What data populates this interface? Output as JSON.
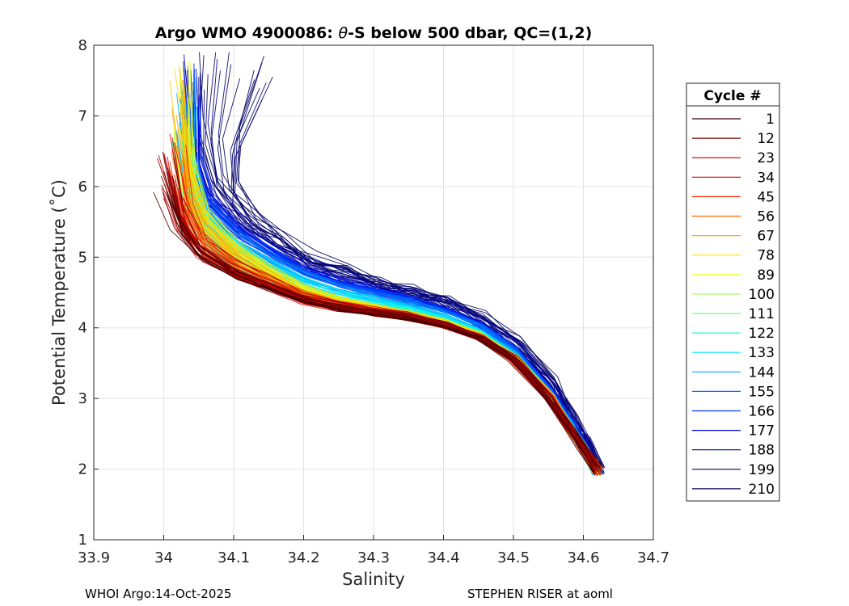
{
  "chart_data": {
    "type": "line",
    "title_prefix": "Argo WMO 4900086: ",
    "title_theta": "θ",
    "title_suffix": "-S below 500 dbar,  QC=(1,2)",
    "xlabel": "Salinity",
    "ylabel": "Potential Temperature (˚C)",
    "xlim": [
      33.9,
      34.7
    ],
    "ylim": [
      1,
      8
    ],
    "xticks": [
      33.9,
      34,
      34.1,
      34.2,
      34.3,
      34.4,
      34.5,
      34.6,
      34.7
    ],
    "xtick_labels": [
      "33.9",
      "34",
      "34.1",
      "34.2",
      "34.3",
      "34.4",
      "34.5",
      "34.6",
      "34.7"
    ],
    "yticks": [
      1,
      2,
      3,
      4,
      5,
      6,
      7,
      8
    ],
    "ytick_labels": [
      "1",
      "2",
      "3",
      "4",
      "5",
      "6",
      "7",
      "8"
    ],
    "grid": true,
    "legend": {
      "title": "Cycle #",
      "placement": "outside-right",
      "entries": [
        "1",
        "12",
        "23",
        "34",
        "45",
        "56",
        "67",
        "78",
        "89",
        "100",
        "111",
        "122",
        "133",
        "144",
        "155",
        "166",
        "177",
        "188",
        "199",
        "210"
      ],
      "colors": [
        "#3a0000",
        "#7a0000",
        "#b80000",
        "#e00000",
        "#ff2a00",
        "#ff6a00",
        "#ffaa00",
        "#ffe000",
        "#e6ff1a",
        "#aaff55",
        "#66ff88",
        "#22ffcc",
        "#00e6ff",
        "#00aaff",
        "#006eff",
        "#0033ff",
        "#0000d8",
        "#000099",
        "#000066",
        "#00005a"
      ]
    },
    "typical_profile": {
      "S": [
        34.0,
        34.02,
        34.05,
        34.1,
        34.15,
        34.2,
        34.25,
        34.3,
        34.35,
        34.4,
        34.45,
        34.5,
        34.55,
        34.58,
        34.6,
        34.62
      ],
      "theta": [
        6.2,
        5.6,
        5.2,
        4.9,
        4.7,
        4.5,
        4.38,
        4.3,
        4.22,
        4.1,
        3.92,
        3.6,
        3.05,
        2.6,
        2.3,
        1.95
      ]
    },
    "profile_count": 210
  },
  "footer": {
    "left": "WHOI Argo:14-Oct-2025",
    "right": "STEPHEN RISER at aoml"
  }
}
